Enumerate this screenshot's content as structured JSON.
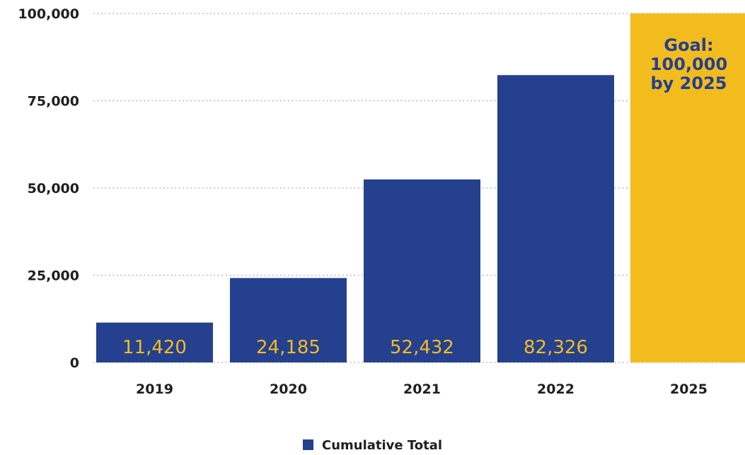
{
  "chart_data": {
    "type": "bar",
    "categories": [
      "2019",
      "2020",
      "2021",
      "2022",
      "2025"
    ],
    "series": [
      {
        "name": "Cumulative Total",
        "values": [
          11420,
          24185,
          52432,
          82326,
          null
        ],
        "labels": [
          "11,420",
          "24,185",
          "52,432",
          "82,326",
          ""
        ]
      }
    ],
    "goal": {
      "category": "2025",
      "value": 100000,
      "label_lines": [
        "Goal:",
        "100,000",
        "by 2025"
      ]
    },
    "yticks": [
      0,
      25000,
      50000,
      75000,
      100000
    ],
    "ytick_labels": [
      "0",
      "25,000",
      "50,000",
      "75,000",
      "100,000"
    ],
    "ylim": [
      0,
      100000
    ],
    "grid": true,
    "legend": {
      "position": "bottom-center",
      "entries": [
        "Cumulative Total"
      ]
    },
    "colors": {
      "bar": "#24408e",
      "goal_bar": "#f3bc1e",
      "bar_label": "#f3bc1e",
      "goal_label": "#24408e"
    }
  }
}
